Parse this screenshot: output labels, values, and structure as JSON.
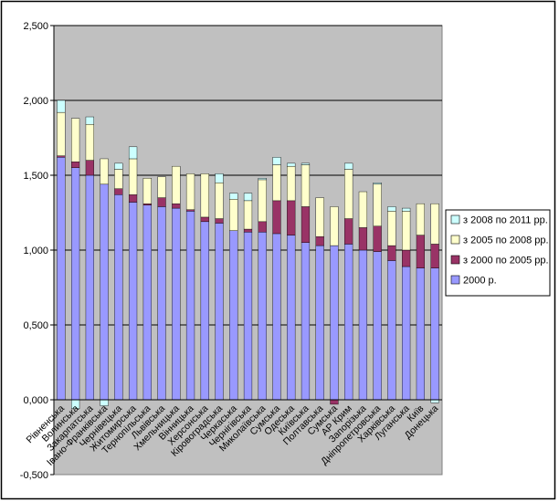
{
  "chart_data": {
    "type": "bar",
    "stacked": true,
    "title": "",
    "xlabel": "",
    "ylabel": "",
    "ylim": [
      -0.5,
      2.5
    ],
    "yticks": [
      "-0,500",
      "0,000",
      "0,500",
      "1,000",
      "1,500",
      "2,000",
      "2,500"
    ],
    "grid": true,
    "legend_position": "right",
    "categories": [
      "Рівненська",
      "Волинська",
      "Закарпатська",
      "Івано-Франківська",
      "Чернівецька",
      "Житомирська",
      "Тернопільська",
      "Львівська",
      "Хмельницька",
      "Вінницька",
      "Херсонська",
      "Кіровоградська",
      "Черкаська",
      "Чернігівська",
      "Миколаївська",
      "Сумська",
      "Одеська",
      "Київська",
      "Полтавська",
      "Сумська",
      "АР Крим",
      "Запорізька",
      "Дніпропетровська",
      "Харківська",
      "Луганська",
      "Київ",
      "Донецька"
    ],
    "series": [
      {
        "name": "2000 р.",
        "color": "#9999ff",
        "values": [
          1.62,
          1.55,
          1.5,
          1.44,
          1.37,
          1.32,
          1.3,
          1.29,
          1.28,
          1.26,
          1.19,
          1.18,
          1.13,
          1.12,
          1.12,
          1.11,
          1.1,
          1.05,
          1.03,
          1.03,
          1.04,
          1.0,
          0.99,
          0.93,
          0.89,
          0.88,
          0.88
        ]
      },
      {
        "name": "з 2000 по 2005 рр.",
        "color": "#993366",
        "values": [
          0.01,
          0.04,
          0.1,
          0.0,
          0.04,
          0.05,
          0.01,
          0.06,
          0.03,
          0.01,
          0.03,
          0.03,
          0.0,
          0.02,
          0.07,
          0.22,
          0.23,
          0.24,
          0.06,
          -0.03,
          0.17,
          0.15,
          0.17,
          0.1,
          0.11,
          0.22,
          0.16
        ]
      },
      {
        "name": "з 2005 по 2008 рр.",
        "color": "#ffffcc",
        "values": [
          0.29,
          0.29,
          0.24,
          0.17,
          0.13,
          0.24,
          0.17,
          0.14,
          0.25,
          0.24,
          0.29,
          0.24,
          0.21,
          0.19,
          0.28,
          0.24,
          0.23,
          0.28,
          0.26,
          0.26,
          0.33,
          0.24,
          0.28,
          0.23,
          0.26,
          0.21,
          0.27
        ]
      },
      {
        "name": "з 2008 по 2011 рр.",
        "color": "#ccffff",
        "values": [
          0.08,
          -0.06,
          0.05,
          -0.04,
          0.04,
          0.08,
          0.0,
          0.0,
          0.0,
          0.0,
          0.0,
          0.06,
          0.04,
          0.05,
          0.01,
          0.05,
          0.02,
          0.01,
          0.0,
          0.0,
          0.04,
          0.0,
          0.01,
          0.03,
          0.02,
          0.0,
          -0.02
        ]
      }
    ]
  }
}
